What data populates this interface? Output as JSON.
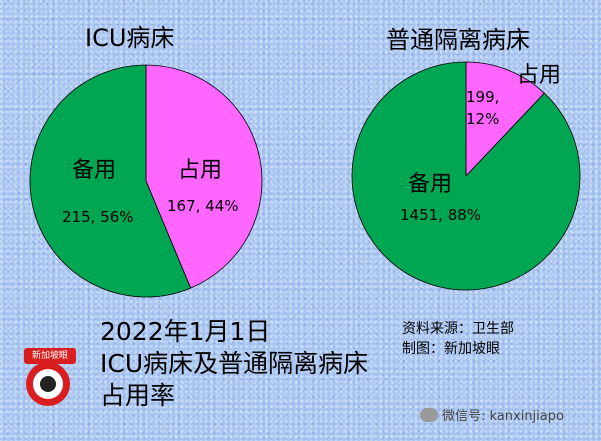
{
  "colors": {
    "green": "#00a651",
    "magenta": "#ff66ff",
    "background": "#a9c6f0"
  },
  "chart_data": [
    {
      "type": "pie",
      "title": "ICU病床",
      "slices": [
        {
          "label": "占用",
          "value": 167,
          "percent": 44,
          "data_label": "167, 44%",
          "color": "#ff66ff"
        },
        {
          "label": "备用",
          "value": 215,
          "percent": 56,
          "data_label": "215, 56%",
          "color": "#00a651"
        }
      ]
    },
    {
      "type": "pie",
      "title": "普通隔离病床",
      "slices": [
        {
          "label": "占用",
          "value": 199,
          "percent": 12,
          "data_label": "199,\n12%",
          "color": "#ff66ff"
        },
        {
          "label": "备用",
          "value": 1451,
          "percent": 88,
          "data_label": "1451, 88%",
          "color": "#00a651"
        }
      ]
    }
  ],
  "footer": {
    "line1": "2022年1月1日",
    "line2": "ICU病床及普通隔离病床",
    "line3": "占用率"
  },
  "source": {
    "line1": "资料来源：卫生部",
    "line2": "制图：新加坡眼"
  },
  "logo": {
    "badge_text": "新加坡眼"
  },
  "wechat": {
    "text": "微信号: kanxinjiapo"
  }
}
